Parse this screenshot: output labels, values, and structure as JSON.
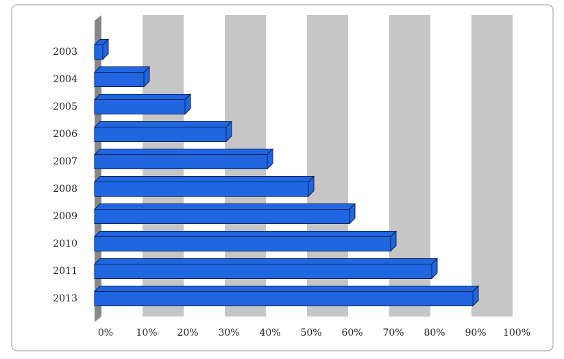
{
  "chart_data": {
    "type": "bar3d",
    "orientation": "horizontal",
    "categories": [
      "2003",
      "2004",
      "2005",
      "2006",
      "2007",
      "2008",
      "2009",
      "2010",
      "2011",
      "2013"
    ],
    "values": [
      2,
      12,
      22,
      32,
      42,
      52,
      62,
      72,
      82,
      92
    ],
    "color": "#1f66e0",
    "xlim": [
      0,
      100
    ],
    "xticks": [
      {
        "value": 0,
        "label": "0%"
      },
      {
        "value": 10,
        "label": "10%"
      },
      {
        "value": 20,
        "label": "20%"
      },
      {
        "value": 30,
        "label": "30%"
      },
      {
        "value": 40,
        "label": "40%"
      },
      {
        "value": 50,
        "label": "50%"
      },
      {
        "value": 60,
        "label": "60%"
      },
      {
        "value": 70,
        "label": "70%"
      },
      {
        "value": 80,
        "label": "80%"
      },
      {
        "value": 90,
        "label": "90%"
      },
      {
        "value": 100,
        "label": "100%"
      }
    ],
    "grid": true
  }
}
